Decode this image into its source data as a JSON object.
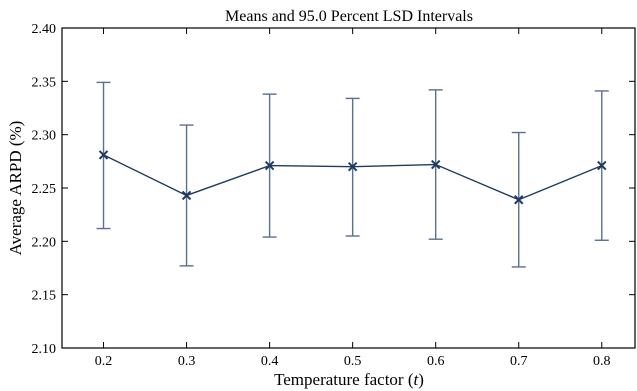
{
  "chart_data": {
    "type": "line",
    "title": "Means and 95.0 Percent LSD Intervals",
    "xlabel": "Temperature factor",
    "xlabel_var": "t",
    "ylabel": "Average ARPD (%)",
    "x": [
      0.2,
      0.3,
      0.4,
      0.5,
      0.6,
      0.7,
      0.8
    ],
    "x_tick_labels": [
      "0.2",
      "0.3",
      "0.4",
      "0.5",
      "0.6",
      "0.7",
      "0.8"
    ],
    "y_ticks": [
      2.1,
      2.15,
      2.2,
      2.25,
      2.3,
      2.35,
      2.4
    ],
    "y_tick_labels": [
      "2.10",
      "2.15",
      "2.20",
      "2.25",
      "2.30",
      "2.35",
      "2.40"
    ],
    "ylim": [
      2.1,
      2.4
    ],
    "xlim": [
      0.15,
      0.84
    ],
    "series": [
      {
        "mean": [
          2.281,
          2.243,
          2.271,
          2.27,
          2.272,
          2.239,
          2.271
        ],
        "lower": [
          2.212,
          2.177,
          2.204,
          2.205,
          2.202,
          2.176,
          2.201
        ],
        "upper": [
          2.349,
          2.309,
          2.338,
          2.334,
          2.342,
          2.302,
          2.341
        ]
      }
    ],
    "colors": {
      "line": "#1f3b5f",
      "errorbar": "#5b6f8f"
    },
    "grid": false,
    "marker": "x"
  }
}
